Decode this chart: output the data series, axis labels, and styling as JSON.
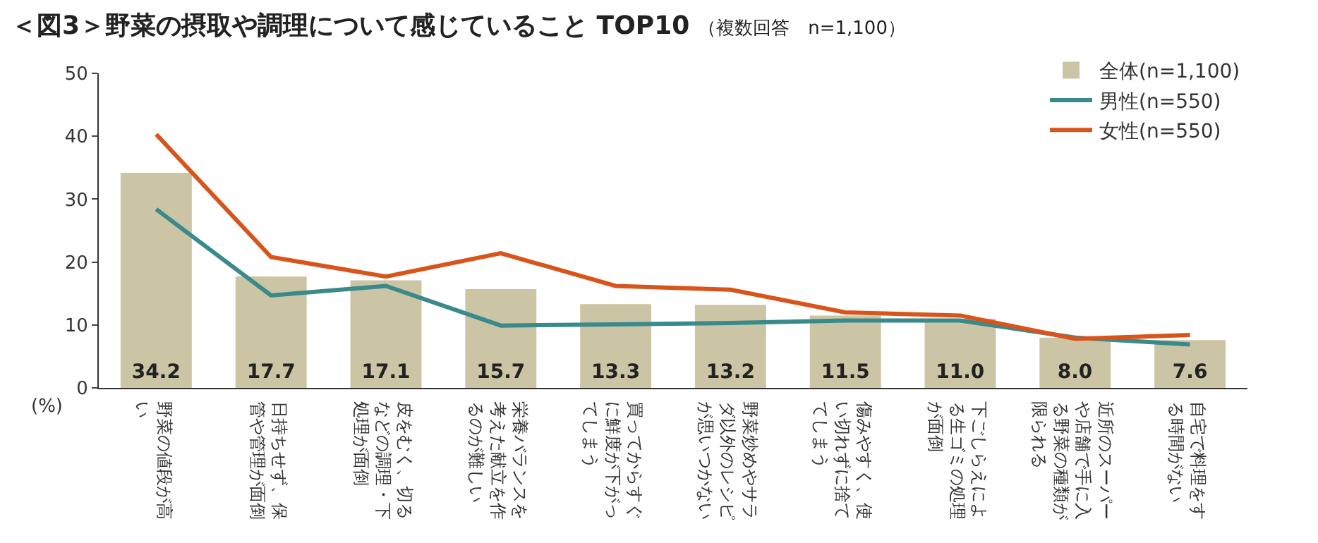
{
  "chart_data": {
    "type": "bar",
    "title": "＜図3＞野菜の摂取や調理について感じていること TOP10",
    "subtitle": "（複数回答　n=1,100）",
    "categories": [
      "野菜の値段が高い",
      "日持ちせず、保管や管理が面倒",
      "皮をむく、切るなどの調理・下処理が面倒",
      "栄養バランスを考えた献立を作るのが難しい",
      "買ってからすぐに鮮度が下がってしまう",
      "野菜炒めやサラダ以外のレシピが思いつかない",
      "傷みやすく、使い切れずに捨ててしまう",
      "下ごしらえによる生ゴミの処理が面倒",
      "近所のスーパーや店舗で手に入る野菜の種類が限られる",
      "自宅で料理をする時間がない"
    ],
    "series": [
      {
        "name": "全体(n=1,100)",
        "color": "#ccc5a5",
        "values": [
          34.2,
          17.7,
          17.1,
          15.7,
          13.3,
          13.2,
          11.5,
          11.0,
          8.0,
          7.6
        ],
        "value_labels": [
          "34.2",
          "17.7",
          "17.1",
          "15.7",
          "13.3",
          "13.2",
          "11.5",
          "11.0",
          "8.0",
          "7.6"
        ]
      },
      {
        "name": "男性(n=550)",
        "type": "line",
        "color": "#3a8a8c",
        "values": [
          28.4,
          14.7,
          16.2,
          9.9,
          10.1,
          10.3,
          10.7,
          10.7,
          8.0,
          6.9
        ]
      },
      {
        "name": "女性(n=550)",
        "type": "line",
        "color": "#d9541b",
        "values": [
          40.3,
          20.8,
          17.7,
          21.4,
          16.2,
          15.6,
          12.0,
          11.5,
          7.8,
          8.4
        ]
      }
    ],
    "ylim": [
      0,
      50
    ],
    "yticks": [
      0,
      10,
      20,
      30,
      40,
      50
    ],
    "annotations": [
      "(%)"
    ],
    "legend": "top right",
    "marker": "none",
    "line_style": "solid"
  }
}
